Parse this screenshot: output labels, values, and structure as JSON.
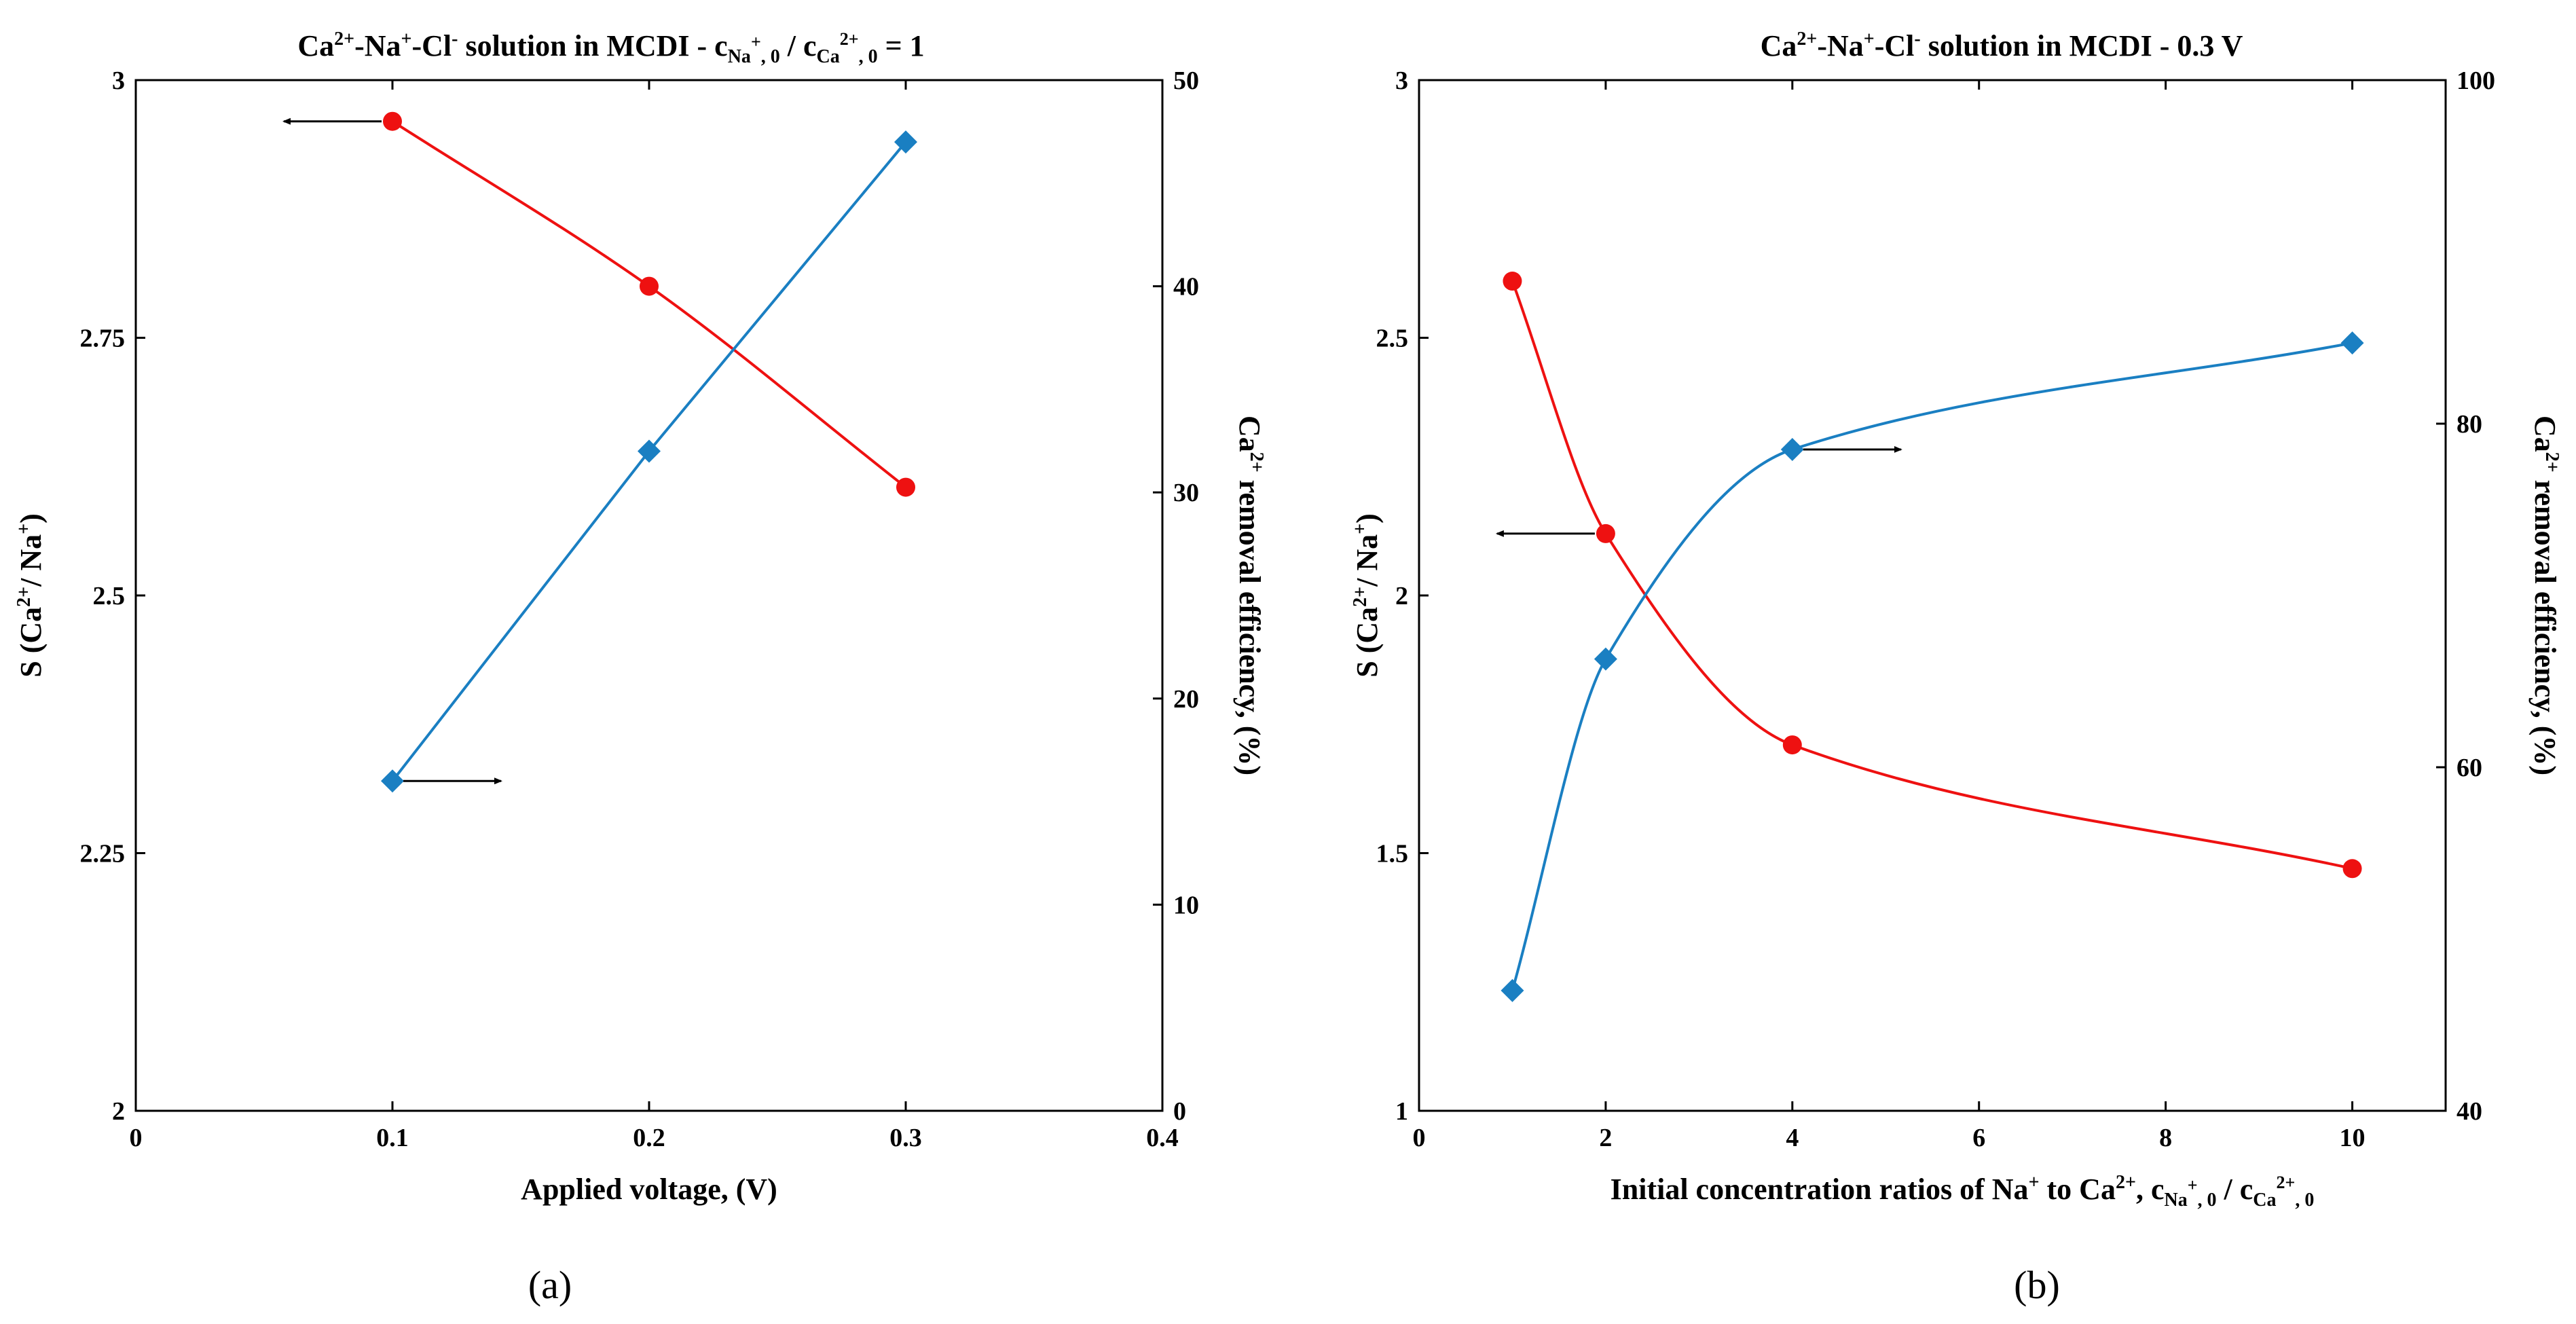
{
  "figure": {
    "panel_a_label": "(a)",
    "panel_b_label": "(b)"
  },
  "chart_data": [
    {
      "id": "a",
      "type": "line",
      "title": "Ca2+-Na+-Cl- solution in MCDI - cNa+,0 / cCa2+,0 = 1",
      "title_parts": {
        "t1": "Ca",
        "t1s": "2+",
        "t2": "-Na",
        "t2s": "+",
        "t3": "-Cl",
        "t3s": "-",
        "t4": " solution in MCDI - c",
        "t4b": "Na",
        "t4bs": "+",
        "t4bb": ", 0",
        "t5": "  / c",
        "t5b": "Ca",
        "t5bs": "2+",
        "t5bb": ", 0",
        "t6": " = 1"
      },
      "xlabel": "Applied voltage, (V)",
      "ylabel": "S (Ca2+/ Na+)",
      "ylabel_parts": {
        "p1": "S (Ca",
        "s1": "2+",
        "p2": "/ Na",
        "s2": "+",
        "p3": ")"
      },
      "y2label": "Ca2+ removal efficiency, (%)",
      "y2label_parts": {
        "p1": "Ca",
        "s1": "2+",
        "p2": " removal efficiency, (%)"
      },
      "xlim": [
        0,
        0.4
      ],
      "ylim": [
        2,
        3
      ],
      "y2lim": [
        0,
        50
      ],
      "xticks": [
        0,
        0.1,
        0.2,
        0.3,
        0.4
      ],
      "xtick_labels": [
        "0",
        "0.1",
        "0.2",
        "0.3",
        "0.4"
      ],
      "yticks": [
        2,
        2.25,
        2.5,
        2.75,
        3
      ],
      "ytick_labels": [
        "2",
        "2.25",
        "2.5",
        "2.75",
        "3"
      ],
      "y2ticks": [
        0,
        10,
        20,
        30,
        40,
        50
      ],
      "y2tick_labels": [
        "0",
        "10",
        "20",
        "30",
        "40",
        "50"
      ],
      "series": [
        {
          "name": "S (Ca2+/Na+)",
          "axis": "left",
          "color": "#ee1111",
          "marker": "circle",
          "x": [
            0.1,
            0.2,
            0.3
          ],
          "values": [
            2.96,
            2.8,
            2.605
          ]
        },
        {
          "name": "Ca2+ removal efficiency",
          "axis": "right",
          "color": "#1a7fc2",
          "marker": "diamond",
          "x": [
            0.1,
            0.2,
            0.3
          ],
          "values": [
            16,
            32,
            47
          ]
        }
      ],
      "arrows": [
        {
          "direction": "left",
          "series": 0,
          "x": 0.1
        },
        {
          "direction": "right",
          "series": 1,
          "x": 0.1
        }
      ]
    },
    {
      "id": "b",
      "type": "line",
      "title": "Ca2+-Na+-Cl- solution in MCDI - 0.3 V",
      "title_parts": {
        "t1": "Ca",
        "t1s": "2+",
        "t2": "-Na",
        "t2s": "+",
        "t3": "-Cl",
        "t3s": "-",
        "t4": " solution in MCDI - 0.3 V"
      },
      "xlabel": "Initial concentration ratios of Na+ to Ca2+, cNa+,0 / cCa2+,0",
      "xlabel_parts": {
        "p1": "Initial concentration ratios of Na",
        "s1": "+",
        "p2": " to Ca",
        "s2": "2+",
        "p3": ", c",
        "b1": "Na",
        "b1s": "+",
        "b1b": ", 0",
        "p4": "  / c",
        "b2": "Ca",
        "b2s": "2+",
        "b2b": ", 0"
      },
      "ylabel": "S (Ca2+/ Na+)",
      "ylabel_parts": {
        "p1": "S (Ca",
        "s1": "2+",
        "p2": "/ Na",
        "s2": "+",
        "p3": ")"
      },
      "y2label": "Ca2+ removal efficiency, (%)",
      "y2label_parts": {
        "p1": "Ca",
        "s1": "2+",
        "p2": " removal efficiency, (%)"
      },
      "xlim": [
        0,
        11
      ],
      "ylim": [
        1,
        3
      ],
      "y2lim": [
        40,
        100
      ],
      "xticks": [
        0,
        2,
        4,
        6,
        8,
        10
      ],
      "xtick_labels": [
        "0",
        "2",
        "4",
        "6",
        "8",
        "10"
      ],
      "yticks": [
        1,
        1.5,
        2,
        2.5,
        3
      ],
      "ytick_labels": [
        "1",
        "1.5",
        "2",
        "2.5",
        "3"
      ],
      "y2ticks": [
        40,
        60,
        80,
        100
      ],
      "y2tick_labels": [
        "40",
        "60",
        "80",
        "100"
      ],
      "series": [
        {
          "name": "S (Ca2+/Na+)",
          "axis": "left",
          "color": "#ee1111",
          "marker": "circle",
          "x": [
            1,
            2,
            4,
            10
          ],
          "values": [
            2.61,
            2.12,
            1.71,
            1.47
          ]
        },
        {
          "name": "Ca2+ removal efficiency",
          "axis": "right",
          "color": "#1a7fc2",
          "marker": "diamond",
          "x": [
            1,
            2,
            4,
            10
          ],
          "values": [
            47,
            66.3,
            78.5,
            84.7
          ]
        }
      ],
      "arrows": [
        {
          "direction": "left",
          "series": 0,
          "x": 2
        },
        {
          "direction": "right",
          "series": 1,
          "x": 4
        }
      ]
    }
  ]
}
